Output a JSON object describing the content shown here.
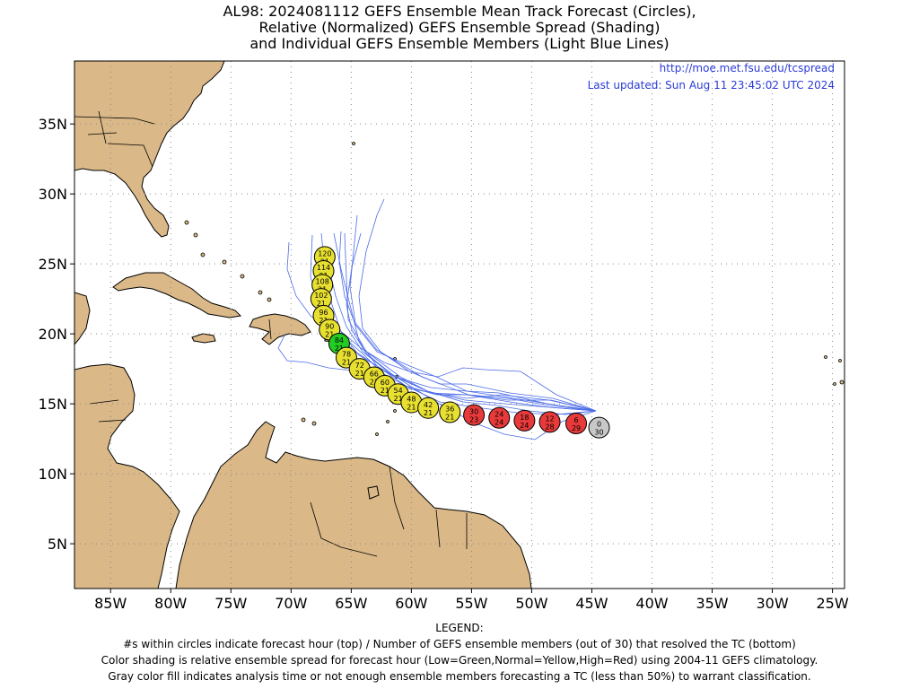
{
  "title": {
    "line1": "AL98: 2024081112 GEFS Ensemble Mean Track Forecast (Circles),",
    "line2": "Relative (Normalized) GEFS Ensemble Spread (Shading)",
    "line3": "and Individual GEFS Ensemble Members (Light Blue Lines)"
  },
  "credits": {
    "url": "http://moe.met.fsu.edu/tcspread",
    "updated": "Last updated: Sun Aug 11 23:45:02 UTC 2024"
  },
  "axes": {
    "lon_ticks": [
      {
        "lon": -85,
        "label": "85W"
      },
      {
        "lon": -80,
        "label": "80W"
      },
      {
        "lon": -75,
        "label": "75W"
      },
      {
        "lon": -70,
        "label": "70W"
      },
      {
        "lon": -65,
        "label": "65W"
      },
      {
        "lon": -60,
        "label": "60W"
      },
      {
        "lon": -55,
        "label": "55W"
      },
      {
        "lon": -50,
        "label": "50W"
      },
      {
        "lon": -45,
        "label": "45W"
      },
      {
        "lon": -40,
        "label": "40W"
      },
      {
        "lon": -35,
        "label": "35W"
      },
      {
        "lon": -30,
        "label": "30W"
      },
      {
        "lon": -25,
        "label": "25W"
      }
    ],
    "lat_ticks": [
      {
        "lat": 35,
        "label": "35N"
      },
      {
        "lat": 30,
        "label": "30N"
      },
      {
        "lat": 25,
        "label": "25N"
      },
      {
        "lat": 20,
        "label": "20N"
      },
      {
        "lat": 15,
        "label": "15N"
      },
      {
        "lat": 10,
        "label": "10N"
      },
      {
        "lat": 5,
        "label": "5N"
      }
    ],
    "lon_range": [
      -88,
      -24
    ],
    "lat_range": [
      1.8,
      39.5
    ],
    "grid": "dotted"
  },
  "colors": {
    "land": "#dab888",
    "ocean": "#ffffff",
    "member_line": "#4a6be8",
    "low_spread": "#22cc22",
    "normal_spread": "#e8e030",
    "high_spread": "#e83a3a",
    "unclassified": "#c8c8c8"
  },
  "track_points": [
    {
      "hour": "0",
      "members": "30",
      "lon": -44.4,
      "lat": 13.3,
      "spread": "gray"
    },
    {
      "hour": "6",
      "members": "29",
      "lon": -46.3,
      "lat": 13.6,
      "spread": "red"
    },
    {
      "hour": "12",
      "members": "28",
      "lon": -48.5,
      "lat": 13.7,
      "spread": "red"
    },
    {
      "hour": "18",
      "members": "24",
      "lon": -50.6,
      "lat": 13.8,
      "spread": "red"
    },
    {
      "hour": "24",
      "members": "24",
      "lon": -52.7,
      "lat": 14.0,
      "spread": "red"
    },
    {
      "hour": "30",
      "members": "23",
      "lon": -54.8,
      "lat": 14.2,
      "spread": "red"
    },
    {
      "hour": "36",
      "members": "21",
      "lon": -56.8,
      "lat": 14.4,
      "spread": "yellow"
    },
    {
      "hour": "42",
      "members": "21",
      "lon": -58.6,
      "lat": 14.7,
      "spread": "yellow"
    },
    {
      "hour": "48",
      "members": "21",
      "lon": -60.0,
      "lat": 15.1,
      "spread": "yellow"
    },
    {
      "hour": "54",
      "members": "21",
      "lon": -61.1,
      "lat": 15.7,
      "spread": "yellow"
    },
    {
      "hour": "60",
      "members": "21",
      "lon": -62.2,
      "lat": 16.3,
      "spread": "yellow"
    },
    {
      "hour": "66",
      "members": "21",
      "lon": -63.1,
      "lat": 16.9,
      "spread": "yellow"
    },
    {
      "hour": "72",
      "members": "21",
      "lon": -64.3,
      "lat": 17.5,
      "spread": "yellow"
    },
    {
      "hour": "78",
      "members": "21",
      "lon": -65.4,
      "lat": 18.3,
      "spread": "yellow"
    },
    {
      "hour": "84",
      "members": "21",
      "lon": -66.0,
      "lat": 19.3,
      "spread": "green"
    },
    {
      "hour": "90",
      "members": "21",
      "lon": -66.8,
      "lat": 20.3,
      "spread": "yellow"
    },
    {
      "hour": "96",
      "members": "21",
      "lon": -67.3,
      "lat": 21.3,
      "spread": "yellow"
    },
    {
      "hour": "102",
      "members": "21",
      "lon": -67.5,
      "lat": 22.5,
      "spread": "yellow"
    },
    {
      "hour": "108",
      "members": "21",
      "lon": -67.4,
      "lat": 23.5,
      "spread": "yellow"
    },
    {
      "hour": "114",
      "members": "21",
      "lon": -67.3,
      "lat": 24.5,
      "spread": "yellow"
    },
    {
      "hour": "120",
      "members": "21",
      "lon": -67.2,
      "lat": 25.5,
      "spread": "yellow"
    }
  ],
  "legend": {
    "heading": "LEGEND:",
    "line1": "#s within circles indicate forecast hour (top) / Number of GEFS ensemble members (out of 30) that resolved the TC (bottom)",
    "line2": "Color shading is relative ensemble spread for forecast hour (Low=Green,Normal=Yellow,High=Red) using 2004-11 GEFS climatology.",
    "line3": "Gray color fill indicates analysis time or not enough ensemble members forecasting a TC (less than 50%) to warrant classification."
  }
}
